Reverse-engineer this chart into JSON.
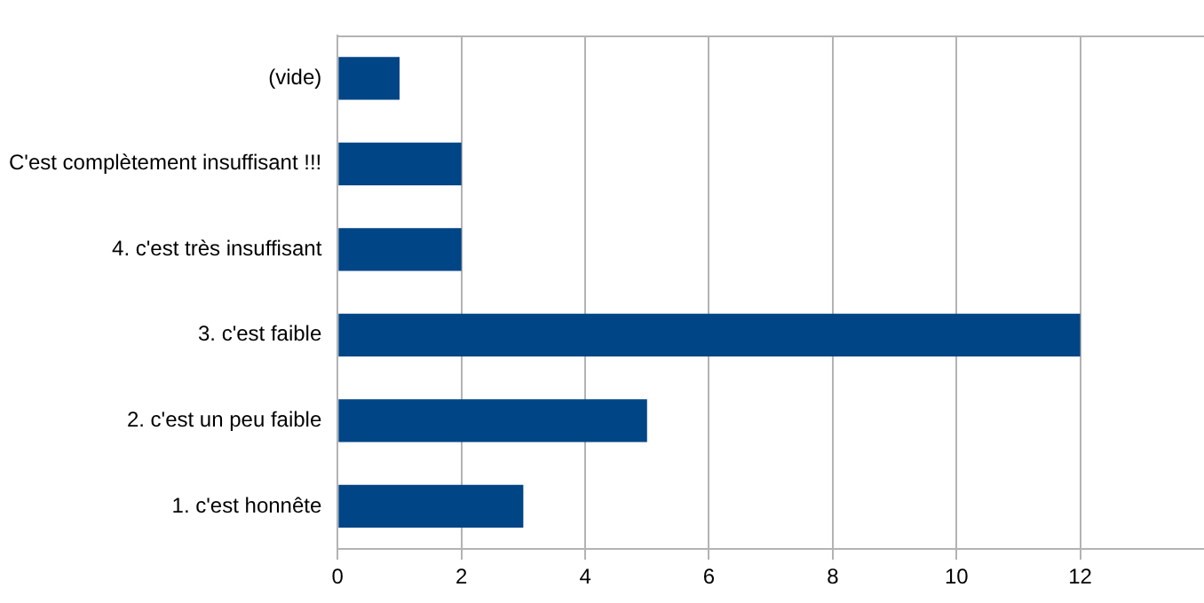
{
  "chart_data": {
    "type": "bar",
    "orientation": "horizontal",
    "categories": [
      "(vide)",
      "C'est complètement insuffisant !!!",
      "4. c'est très insuffisant",
      "3. c'est faible",
      "2. c'est un peu faible",
      "1. c'est honnête"
    ],
    "values": [
      1,
      2,
      2,
      12,
      5,
      3
    ],
    "color": "#004586",
    "xlim": [
      0,
      14
    ],
    "xticks": [
      0,
      2,
      4,
      6,
      8,
      10,
      12
    ],
    "grid": "x",
    "legend": false
  }
}
